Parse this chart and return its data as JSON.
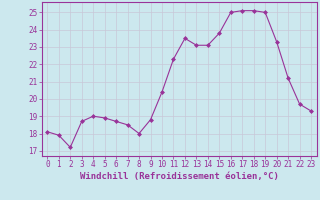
{
  "x": [
    0,
    1,
    2,
    3,
    4,
    5,
    6,
    7,
    8,
    9,
    10,
    11,
    12,
    13,
    14,
    15,
    16,
    17,
    18,
    19,
    20,
    21,
    22,
    23
  ],
  "y": [
    18.1,
    17.9,
    17.2,
    18.7,
    19.0,
    18.9,
    18.7,
    18.5,
    18.0,
    18.8,
    20.4,
    22.3,
    23.5,
    23.1,
    23.1,
    23.8,
    25.0,
    25.1,
    25.1,
    25.0,
    23.3,
    21.2,
    19.7,
    19.3
  ],
  "line_color": "#993399",
  "marker": "D",
  "marker_size": 2.0,
  "background_color": "#cce8ee",
  "grid_color": "#c8c8d8",
  "xlabel": "Windchill (Refroidissement éolien,°C)",
  "xlabel_fontsize": 6.5,
  "ylabel_ticks": [
    17,
    18,
    19,
    20,
    21,
    22,
    23,
    24,
    25
  ],
  "xtick_labels": [
    "0",
    "1",
    "2",
    "3",
    "4",
    "5",
    "6",
    "7",
    "8",
    "9",
    "10",
    "11",
    "12",
    "13",
    "14",
    "15",
    "16",
    "17",
    "18",
    "19",
    "20",
    "21",
    "22",
    "23"
  ],
  "xlim": [
    -0.5,
    23.5
  ],
  "ylim": [
    16.7,
    25.6
  ],
  "tick_fontsize": 5.5,
  "tick_color": "#993399",
  "label_color": "#993399",
  "spine_color": "#993399"
}
